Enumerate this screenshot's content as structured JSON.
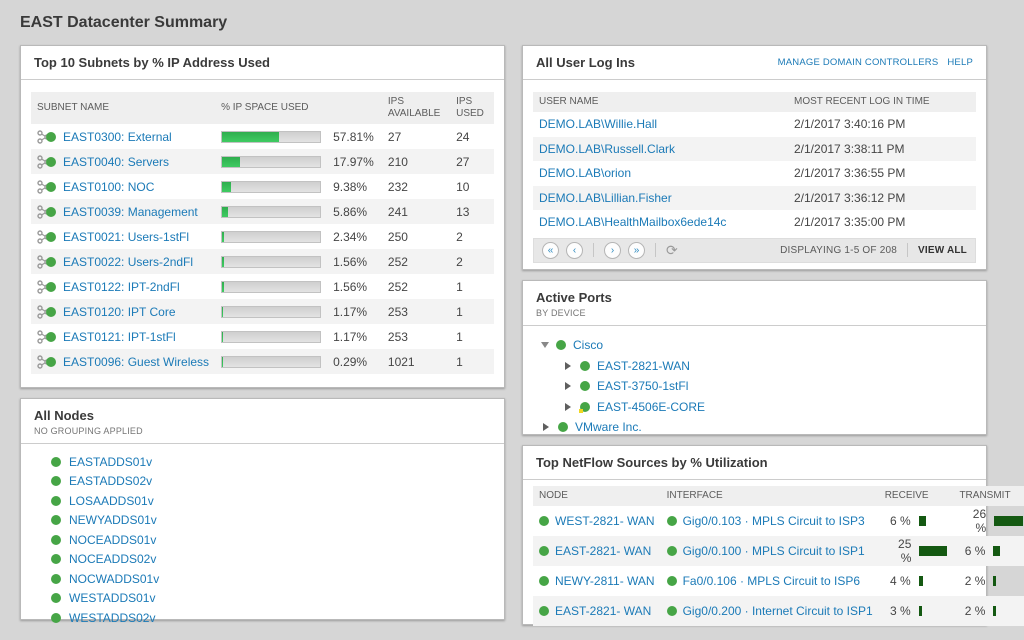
{
  "page": {
    "title": "EAST Datacenter Summary"
  },
  "colors": {
    "accent_green": "#46a546",
    "link_blue": "#1b7ab7",
    "bar_green": "#2fae4e",
    "netflow_bar": "#145912",
    "warn_yellow": "#f0d722"
  },
  "subnets_panel": {
    "title": "Top 10 Subnets by % IP Address Used",
    "columns": {
      "name": "SUBNET NAME",
      "space_used": "% IP SPACE USED",
      "ips_available": "IPS AVAILABLE",
      "ips_used": "IPS USED"
    },
    "rows": [
      {
        "name": "EAST0300: External",
        "pct_label": "57.81%",
        "pct_value": 57.81,
        "ips_available": "27",
        "ips_used": "24"
      },
      {
        "name": "EAST0040: Servers",
        "pct_label": "17.97%",
        "pct_value": 17.97,
        "ips_available": "210",
        "ips_used": "27"
      },
      {
        "name": "EAST0100: NOC",
        "pct_label": "9.38%",
        "pct_value": 9.38,
        "ips_available": "232",
        "ips_used": "10"
      },
      {
        "name": "EAST0039: Management",
        "pct_label": "5.86%",
        "pct_value": 5.86,
        "ips_available": "241",
        "ips_used": "13"
      },
      {
        "name": "EAST0021: Users-1stFl",
        "pct_label": "2.34%",
        "pct_value": 2.34,
        "ips_available": "250",
        "ips_used": "2"
      },
      {
        "name": "EAST0022: Users-2ndFl",
        "pct_label": "1.56%",
        "pct_value": 1.56,
        "ips_available": "252",
        "ips_used": "2"
      },
      {
        "name": "EAST0122: IPT-2ndFl",
        "pct_label": "1.56%",
        "pct_value": 1.56,
        "ips_available": "252",
        "ips_used": "1"
      },
      {
        "name": "EAST0120: IPT Core",
        "pct_label": "1.17%",
        "pct_value": 1.17,
        "ips_available": "253",
        "ips_used": "1"
      },
      {
        "name": "EAST0121: IPT-1stFl",
        "pct_label": "1.17%",
        "pct_value": 1.17,
        "ips_available": "253",
        "ips_used": "1"
      },
      {
        "name": "EAST0096: Guest Wireless",
        "pct_label": "0.29%",
        "pct_value": 0.29,
        "ips_available": "1021",
        "ips_used": "1"
      }
    ]
  },
  "nodes_panel": {
    "title": "All Nodes",
    "subtitle": "NO GROUPING APPLIED",
    "nodes": [
      {
        "name": "EASTADDS01v"
      },
      {
        "name": "EASTADDS02v"
      },
      {
        "name": "LOSAADDS01v"
      },
      {
        "name": "NEWYADDS01v"
      },
      {
        "name": "NOCEADDS01v"
      },
      {
        "name": "NOCEADDS02v"
      },
      {
        "name": "NOCWADDS01v"
      },
      {
        "name": "WESTADDS01v"
      },
      {
        "name": "WESTADDS02v"
      }
    ]
  },
  "logins_panel": {
    "title": "All User Log Ins",
    "links": {
      "manage": "MANAGE DOMAIN CONTROLLERS",
      "help": "HELP"
    },
    "columns": {
      "user": "USER NAME",
      "time": "MOST RECENT LOG IN TIME"
    },
    "rows": [
      {
        "user": "DEMO.LAB\\Willie.Hall",
        "time": "2/1/2017 3:40:16 PM"
      },
      {
        "user": "DEMO.LAB\\Russell.Clark",
        "time": "2/1/2017 3:38:11 PM"
      },
      {
        "user": "DEMO.LAB\\orion",
        "time": "2/1/2017 3:36:55 PM"
      },
      {
        "user": "DEMO.LAB\\Lillian.Fisher",
        "time": "2/1/2017 3:36:12 PM"
      },
      {
        "user": "DEMO.LAB\\HealthMailbox6ede14c",
        "time": "2/1/2017 3:35:00 PM"
      }
    ],
    "pager": {
      "first": "«",
      "prev": "‹",
      "next": "›",
      "last": "»",
      "refresh": "⟳",
      "status": "DISPLAYING 1-5 OF 208",
      "view_all": "VIEW ALL"
    }
  },
  "active_ports_panel": {
    "title": "Active Ports",
    "subtitle": "BY DEVICE",
    "tree": [
      {
        "label": "Cisco",
        "level": 0,
        "expanded": true,
        "status": "up"
      },
      {
        "label": "EAST-2821-WAN",
        "level": 1,
        "expanded": false,
        "status": "up"
      },
      {
        "label": "EAST-3750-1stFl",
        "level": 1,
        "expanded": false,
        "status": "up"
      },
      {
        "label": "EAST-4506E-CORE",
        "level": 1,
        "expanded": false,
        "status": "warn"
      },
      {
        "label": "VMware Inc.",
        "level": 0,
        "expanded": false,
        "status": "up"
      }
    ]
  },
  "netflow_panel": {
    "title": "Top NetFlow Sources by % Utilization",
    "columns": {
      "node": "NODE",
      "interface": "INTERFACE",
      "receive": "RECEIVE",
      "transmit": "TRANSMIT"
    },
    "rows": [
      {
        "node": "WEST-2821- WAN",
        "interface": "Gig0/0.103 · MPLS Circuit to ISP3",
        "receive_label": "6 %",
        "receive_value": 6,
        "transmit_label": "26 %",
        "transmit_value": 26
      },
      {
        "node": "EAST-2821- WAN",
        "interface": "Gig0/0.100 · MPLS Circuit to ISP1",
        "receive_label": "25 %",
        "receive_value": 25,
        "transmit_label": "6 %",
        "transmit_value": 6
      },
      {
        "node": "NEWY-2811- WAN",
        "interface": "Fa0/0.106 · MPLS Circuit to ISP6",
        "receive_label": "4 %",
        "receive_value": 4,
        "transmit_label": "2 %",
        "transmit_value": 2
      },
      {
        "node": "EAST-2821- WAN",
        "interface": "Gig0/0.200 · Internet Circuit to ISP1",
        "receive_label": "3 %",
        "receive_value": 3,
        "transmit_label": "2 %",
        "transmit_value": 2
      }
    ]
  }
}
